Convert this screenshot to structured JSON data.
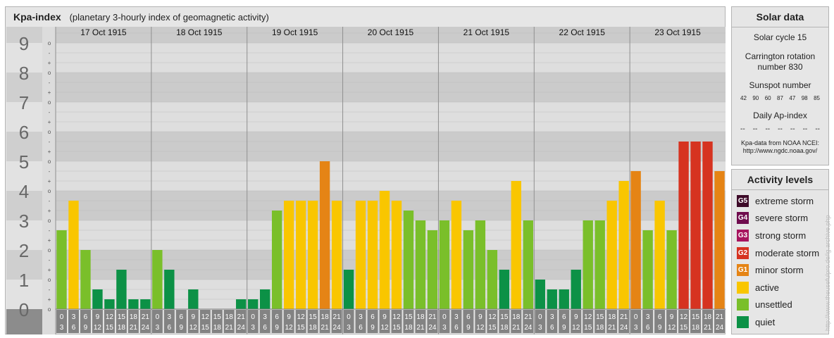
{
  "title": "Kpa-index",
  "subtitle": "(planetary 3-hourly index of geomagnetic activity)",
  "chart_data": {
    "type": "bar",
    "y_axis": {
      "ticks": [
        "0",
        "1",
        "2",
        "3",
        "4",
        "5",
        "6",
        "7",
        "8",
        "9"
      ],
      "ylim": [
        0,
        9.33
      ],
      "sub_ticks": [
        "o",
        "+",
        "-"
      ]
    },
    "days": [
      "17 Oct 1915",
      "18 Oct 1915",
      "19 Oct 1915",
      "20 Oct 1915",
      "21 Oct 1915",
      "22 Oct 1915",
      "23 Oct 1915"
    ],
    "interval_labels": [
      [
        "0",
        "3"
      ],
      [
        "3",
        "6"
      ],
      [
        "6",
        "9"
      ],
      [
        "9",
        "12"
      ],
      [
        "12",
        "15"
      ],
      [
        "15",
        "18"
      ],
      [
        "18",
        "21"
      ],
      [
        "21",
        "24"
      ]
    ],
    "values": [
      [
        2.667,
        3.667,
        2.0,
        0.667,
        0.333,
        1.333,
        0.333,
        0.333
      ],
      [
        2.0,
        1.333,
        0.0,
        0.667,
        0.0,
        0.0,
        0.0,
        0.333
      ],
      [
        0.333,
        0.667,
        3.333,
        3.667,
        3.667,
        3.667,
        5.0,
        3.667
      ],
      [
        1.333,
        3.667,
        3.667,
        4.0,
        3.667,
        3.333,
        3.0,
        2.667
      ],
      [
        3.0,
        3.667,
        2.667,
        3.0,
        2.0,
        1.333,
        4.333,
        3.0
      ],
      [
        1.0,
        0.667,
        0.667,
        1.333,
        3.0,
        3.0,
        3.667,
        4.333
      ],
      [
        4.667,
        2.667,
        3.667,
        2.667,
        5.667,
        5.667,
        5.667,
        4.667
      ]
    ]
  },
  "colors": {
    "quiet": "#0c9146",
    "unsettled": "#7abf2a",
    "active": "#f9c600",
    "minor": "#e58415",
    "moderate": "#d63320",
    "strong": "#a7145e",
    "severe": "#6f0c4e",
    "extreme": "#3d0a28",
    "band_dark": "#cacaca",
    "band_light": "#d8d8d8",
    "axis_bg": "#8c8c8c",
    "label_box": "#838383"
  },
  "solar": {
    "title": "Solar data",
    "cycle": "Solar cycle 15",
    "carrington_1": "Carrington rotation",
    "carrington_2": "number 830",
    "sunspot_title": "Sunspot number",
    "sunspots": [
      "42",
      "90",
      "60",
      "87",
      "47",
      "98",
      "85"
    ],
    "ap_title": "Daily Ap-index",
    "ap_values": [
      "--",
      "--",
      "--",
      "--",
      "--",
      "--",
      "--"
    ],
    "note_1": "Kpa-data from NOAA NCEI:",
    "note_2": "http://www.ngdc.noaa.gov/"
  },
  "levels": {
    "title": "Activity levels",
    "items": [
      {
        "badge": "G5",
        "label": "extreme storm",
        "color": "#3d0a28"
      },
      {
        "badge": "G4",
        "label": "severe storm",
        "color": "#6f0c4e"
      },
      {
        "badge": "G3",
        "label": "strong storm",
        "color": "#a7145e"
      },
      {
        "badge": "G2",
        "label": "moderate storm",
        "color": "#d63320"
      },
      {
        "badge": "G1",
        "label": "minor storm",
        "color": "#e58415"
      },
      {
        "badge": "",
        "label": "active",
        "color": "#f9c600"
      },
      {
        "badge": "",
        "label": "unsettled",
        "color": "#7abf2a"
      },
      {
        "badge": "",
        "label": "quiet",
        "color": "#0c9146"
      }
    ]
  },
  "watermark": "http://www.theusefulpro.de/ig.archive.php"
}
